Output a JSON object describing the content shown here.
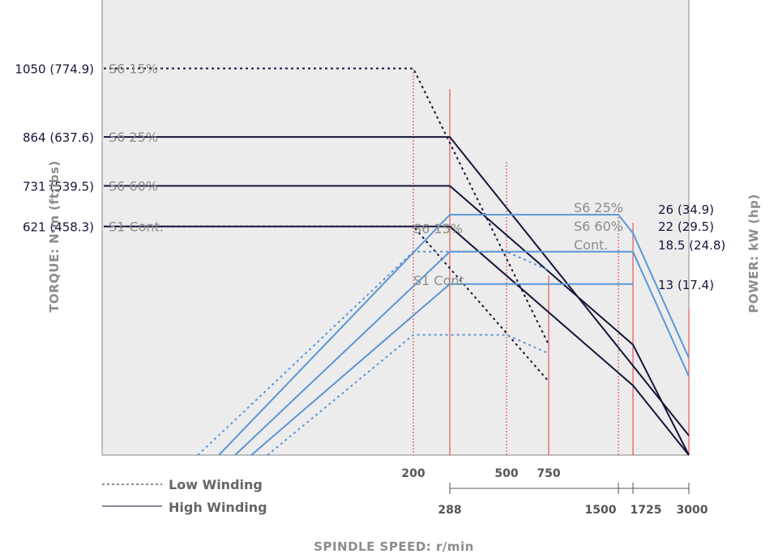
{
  "chart_data": {
    "type": "line",
    "xlabel": "SPINDLE SPEED: r/min",
    "ylabel_left": "TORQUE: N·m (ft/lbs)",
    "ylabel_right": "POWER: kW (hp)",
    "speed_ticks_top": [
      "200",
      "500",
      "750"
    ],
    "speed_ticks_bottom": [
      "288",
      "1500",
      "1725",
      "3000"
    ],
    "torque_levels": [
      "1050 (774.9)",
      "864 (637.6)",
      "731 (539.5)",
      "621 (458.3)"
    ],
    "torque_series_labels": [
      "S6 15%",
      "S6 25%",
      "S6 60%",
      "S1 Cont."
    ],
    "power_levels": [
      "26 (34.9)",
      "22 (29.5)",
      "18.5 (24.8)",
      "13 (17.4)"
    ],
    "power_series_labels": {
      "low_s6_15": "S6 15%",
      "low_s1_cont": "S1 Cont.",
      "high_s6_25": "S6 25%",
      "high_s6_60": "S6 60%",
      "high_cont": "Cont."
    },
    "legend": [
      {
        "label": "Low Winding",
        "style": "dashed"
      },
      {
        "label": "High Winding",
        "style": "solid"
      }
    ],
    "series": [
      {
        "kind": "torque",
        "winding": "low",
        "label": "S6 15%",
        "points": [
          [
            0,
            1050
          ],
          [
            200,
            1050
          ],
          [
            750,
            300
          ]
        ]
      },
      {
        "kind": "torque",
        "winding": "low",
        "label": "S1 Cont.",
        "points": [
          [
            0,
            621
          ],
          [
            200,
            621
          ],
          [
            750,
            200
          ]
        ]
      },
      {
        "kind": "torque",
        "winding": "high",
        "label": "S6 25%",
        "points": [
          [
            0,
            864
          ],
          [
            288,
            864
          ],
          [
            3000,
            53
          ]
        ]
      },
      {
        "kind": "torque",
        "winding": "high",
        "label": "S6 60%",
        "points": [
          [
            0,
            731
          ],
          [
            288,
            731
          ],
          [
            1725,
            300
          ],
          [
            3000,
            0
          ]
        ]
      },
      {
        "kind": "torque",
        "winding": "high",
        "label": "S1 Cont.",
        "points": [
          [
            0,
            621
          ],
          [
            288,
            621
          ],
          [
            1725,
            189
          ],
          [
            3000,
            0
          ]
        ]
      },
      {
        "kind": "power",
        "winding": "low",
        "label": "S6 15%",
        "points": [
          [
            0,
            0
          ],
          [
            200,
            22
          ],
          [
            500,
            22
          ],
          [
            750,
            20
          ]
        ]
      },
      {
        "kind": "power",
        "winding": "low",
        "label": "S1 Cont.",
        "points": [
          [
            0,
            0
          ],
          [
            200,
            13
          ],
          [
            500,
            13
          ],
          [
            750,
            11
          ]
        ]
      },
      {
        "kind": "power",
        "winding": "high",
        "label": "S6 25%",
        "points": [
          [
            0,
            0
          ],
          [
            288,
            26
          ],
          [
            1500,
            26
          ],
          [
            1725,
            24
          ],
          [
            3000,
            10.5
          ]
        ]
      },
      {
        "kind": "power",
        "winding": "high",
        "label": "S6 60%",
        "points": [
          [
            0,
            0
          ],
          [
            288,
            22
          ],
          [
            1725,
            22
          ],
          [
            3000,
            8.5
          ]
        ]
      },
      {
        "kind": "power",
        "winding": "high",
        "label": "Cont.",
        "points": [
          [
            0,
            0
          ],
          [
            288,
            18.5
          ],
          [
            1725,
            18.5
          ]
        ]
      }
    ],
    "colors": {
      "plot_bg": "#ececec",
      "torque_line": "#16163a",
      "power_line": "#5b96d6",
      "marker_line": "#e23a3a",
      "grid_border": "#888888"
    }
  }
}
